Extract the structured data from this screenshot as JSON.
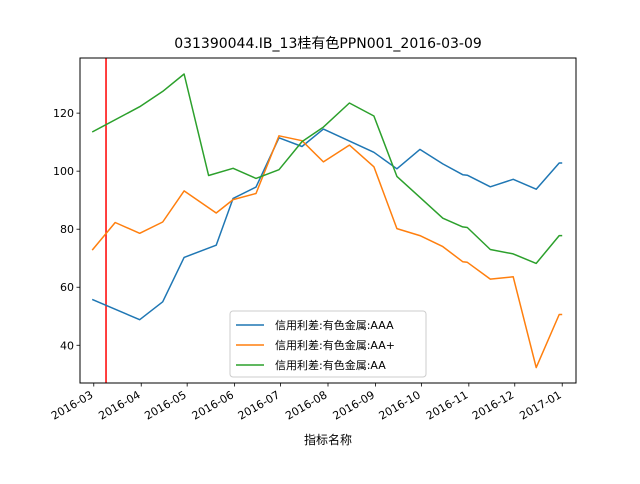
{
  "chart_data": {
    "type": "line",
    "title": "031390044.IB_13桂有色PPN001_2016-03-09",
    "xlabel": "指标名称",
    "ylabel": "",
    "x_tick_labels": [
      "2016-03",
      "2016-04",
      "2016-05",
      "2016-06",
      "2016-07",
      "2016-08",
      "2016-09",
      "2016-10",
      "2016-11",
      "2016-12",
      "2017-01"
    ],
    "y_ticks": [
      40,
      60,
      80,
      100,
      120
    ],
    "ylim": [
      27,
      139
    ],
    "xlim": [
      "2016-02-21",
      "2017-01-10"
    ],
    "marker_date": "2016-03-09",
    "marker_color": "#ff0000",
    "legend_position": "lower-center",
    "grid": false,
    "series": [
      {
        "name": "信用利差:有色金属:AAA",
        "color": "#1f77b4",
        "points": [
          [
            "2016-02-29",
            55.8
          ],
          [
            "2016-03-31",
            48.8
          ],
          [
            "2016-04-15",
            55.0
          ],
          [
            "2016-04-29",
            70.3
          ],
          [
            "2016-05-20",
            74.5
          ],
          [
            "2016-05-31",
            90.6
          ],
          [
            "2016-06-15",
            94.5
          ],
          [
            "2016-06-30",
            111.5
          ],
          [
            "2016-07-15",
            108.5
          ],
          [
            "2016-07-29",
            114.5
          ],
          [
            "2016-08-31",
            106.5
          ],
          [
            "2016-09-15",
            100.8
          ],
          [
            "2016-09-30",
            107.5
          ],
          [
            "2016-10-15",
            102.5
          ],
          [
            "2016-10-28",
            98.8
          ],
          [
            "2016-10-31",
            98.6
          ],
          [
            "2016-11-15",
            94.6
          ],
          [
            "2016-11-30",
            97.2
          ],
          [
            "2016-12-15",
            93.8
          ],
          [
            "2016-12-30",
            102.8
          ],
          [
            "2017-01-01",
            102.8
          ]
        ]
      },
      {
        "name": "信用利差:有色金属:AA+",
        "color": "#ff7f0e",
        "points": [
          [
            "2016-02-29",
            72.8
          ],
          [
            "2016-03-15",
            82.3
          ],
          [
            "2016-03-31",
            78.6
          ],
          [
            "2016-04-15",
            82.5
          ],
          [
            "2016-04-29",
            93.2
          ],
          [
            "2016-05-20",
            85.6
          ],
          [
            "2016-05-31",
            90.2
          ],
          [
            "2016-06-15",
            92.3
          ],
          [
            "2016-06-30",
            112.2
          ],
          [
            "2016-07-15",
            110.5
          ],
          [
            "2016-07-29",
            103.2
          ],
          [
            "2016-08-15",
            109.0
          ],
          [
            "2016-08-31",
            101.5
          ],
          [
            "2016-09-15",
            80.2
          ],
          [
            "2016-09-30",
            77.8
          ],
          [
            "2016-10-15",
            74.0
          ],
          [
            "2016-10-28",
            68.8
          ],
          [
            "2016-10-31",
            68.6
          ],
          [
            "2016-11-15",
            62.8
          ],
          [
            "2016-11-30",
            63.6
          ],
          [
            "2016-12-15",
            32.3
          ],
          [
            "2016-12-30",
            50.6
          ],
          [
            "2017-01-01",
            50.6
          ]
        ]
      },
      {
        "name": "信用利差:有色金属:AA",
        "color": "#2ca02c",
        "points": [
          [
            "2016-02-29",
            113.5
          ],
          [
            "2016-03-31",
            122.2
          ],
          [
            "2016-04-15",
            127.5
          ],
          [
            "2016-04-29",
            133.5
          ],
          [
            "2016-05-15",
            98.5
          ],
          [
            "2016-05-31",
            101.0
          ],
          [
            "2016-06-15",
            97.5
          ],
          [
            "2016-06-30",
            100.5
          ],
          [
            "2016-07-15",
            110.2
          ],
          [
            "2016-07-29",
            115.2
          ],
          [
            "2016-08-15",
            123.5
          ],
          [
            "2016-08-31",
            119.0
          ],
          [
            "2016-09-15",
            98.2
          ],
          [
            "2016-09-30",
            91.0
          ],
          [
            "2016-10-15",
            83.8
          ],
          [
            "2016-10-28",
            80.8
          ],
          [
            "2016-10-31",
            80.6
          ],
          [
            "2016-11-15",
            73.0
          ],
          [
            "2016-11-30",
            71.5
          ],
          [
            "2016-12-15",
            68.2
          ],
          [
            "2016-12-30",
            77.8
          ],
          [
            "2017-01-01",
            77.8
          ]
        ]
      }
    ]
  }
}
